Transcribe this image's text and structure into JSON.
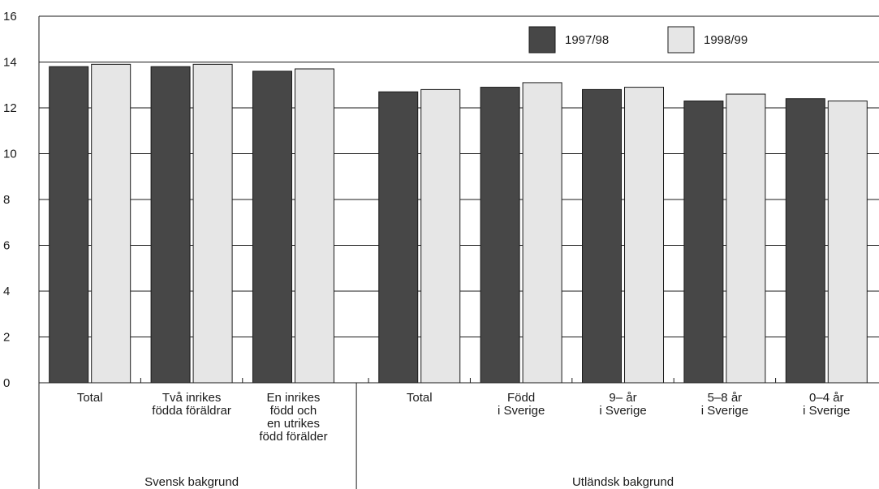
{
  "chart_data": {
    "type": "bar",
    "title": "",
    "xlabel": "",
    "ylabel": "",
    "ylim": [
      0,
      16
    ],
    "yticks": [
      0,
      2,
      4,
      6,
      8,
      10,
      12,
      14,
      16
    ],
    "grid": true,
    "legend_position": "top-right",
    "categories": [
      [
        "Total"
      ],
      [
        "Två inrikes",
        "födda föräldrar"
      ],
      [
        "En inrikes",
        "född och",
        "en utrikes",
        "född förälder"
      ],
      [
        "Total"
      ],
      [
        "Född",
        "i Sverige"
      ],
      [
        "9– år",
        "i Sverige"
      ],
      [
        "5–8 år",
        "i Sverige"
      ],
      [
        "0–4 år",
        "i Sverige"
      ]
    ],
    "groups": [
      {
        "label": "Svensk bakgrund",
        "categories": [
          0,
          1,
          2
        ]
      },
      {
        "label": "Utländsk bakgrund",
        "categories": [
          3,
          4,
          5,
          6,
          7
        ]
      }
    ],
    "series": [
      {
        "name": "1997/98",
        "color": "#474747",
        "values": [
          13.8,
          13.8,
          13.6,
          12.7,
          12.9,
          12.8,
          12.3,
          12.4
        ]
      },
      {
        "name": "1998/99",
        "color": "#e6e6e6",
        "values": [
          13.9,
          13.9,
          13.7,
          12.8,
          13.1,
          12.9,
          12.6,
          12.3
        ]
      }
    ]
  }
}
